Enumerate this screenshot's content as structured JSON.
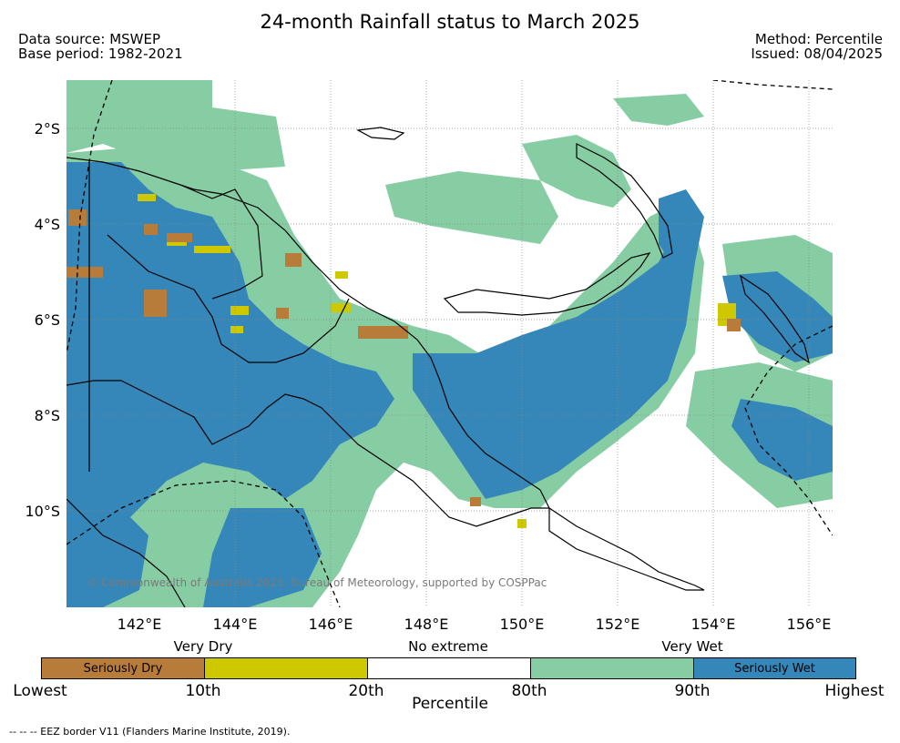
{
  "title": "24-month Rainfall status to March 2025",
  "meta": {
    "data_source": "Data source: MSWEP",
    "base_period": "Base period: 1982-2021",
    "method": "Method: Percentile",
    "issued": "Issued: 08/04/2025"
  },
  "axes": {
    "lat_labels": [
      "2°S",
      "4°S",
      "6°S",
      "8°S",
      "10°S"
    ],
    "lon_labels": [
      "142°E",
      "144°E",
      "146°E",
      "148°E",
      "150°E",
      "152°E",
      "154°E",
      "156°E"
    ]
  },
  "copyright": "© Commonwealth of Australia 2025, Bureau of Meteorology, supported by COSPPac",
  "legend": {
    "group_labels": [
      "Very Dry",
      "No extreme",
      "Very Wet"
    ],
    "segments": [
      {
        "label": "Seriously Dry",
        "color": "#b87c3a"
      },
      {
        "label": "",
        "color": "#cdc800"
      },
      {
        "label": "",
        "color": "#ffffff"
      },
      {
        "label": "",
        "color": "#86cda4"
      },
      {
        "label": "Seriously Wet",
        "color": "#3587b9"
      }
    ],
    "tick_labels": [
      "Lowest",
      "10th",
      "20th",
      "80th",
      "90th",
      "Highest"
    ],
    "axis_title": "Percentile"
  },
  "footnote": "--  --  -- EEZ border V11 (Flanders Marine Institute, 2019).",
  "colors": {
    "very_wet": "#86cda4",
    "seriously_wet": "#3587b9",
    "very_dry": "#cdc800",
    "seriously_dry": "#b87c3a",
    "coast": "#000000"
  }
}
